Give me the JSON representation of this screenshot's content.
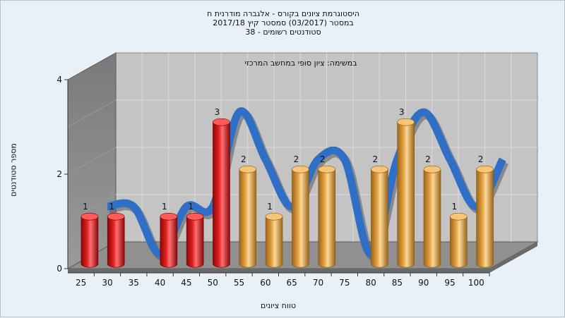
{
  "chart_data": {
    "type": "bar",
    "title_lines": [
      "היסטוגרמת ציונים בקורס - אלגברה מודרנית ח",
      "במסטר (03/2017) סמסטר קיץ 2017/18",
      "סטודנטים רשומים - 38"
    ],
    "annotation": "במשימה: ציון סופי במחשב המרכזי",
    "xlabel": "טווח ציונים",
    "ylabel": "מספר סטודנטים",
    "ylim": [
      0,
      4
    ],
    "yticks": [
      0,
      2,
      4
    ],
    "categories": [
      "25",
      "30",
      "35",
      "40",
      "45",
      "50",
      "55",
      "60",
      "65",
      "70",
      "75",
      "80",
      "85",
      "90",
      "95",
      "100"
    ],
    "values": [
      1,
      1,
      0,
      1,
      1,
      3,
      2,
      1,
      2,
      2,
      0,
      2,
      3,
      2,
      1,
      2
    ],
    "fail_threshold": 55,
    "colors": {
      "fail": "#e01818",
      "pass": "#e8a448",
      "curve": "#2f6fc6",
      "curve_dark": "#5a5a5a",
      "plot_back": "#c4c4c4",
      "side_wall": "#808080",
      "floor": "#909090"
    }
  }
}
